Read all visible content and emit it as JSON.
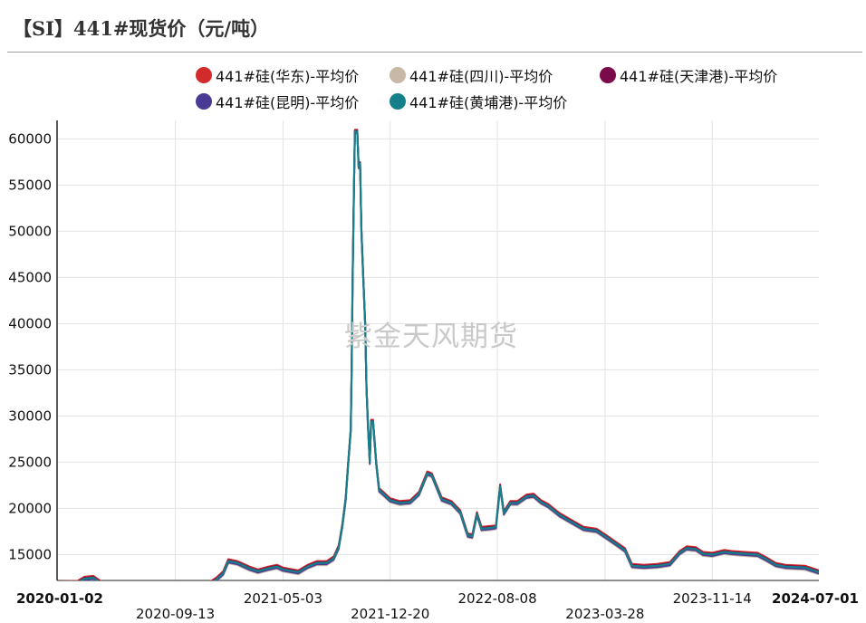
{
  "title": "【SI】441#现货价（元/吨）",
  "watermark": "紫金天风期货",
  "colors": {
    "grid": "#e3e3e3",
    "axis": "#222222"
  },
  "chart_data": {
    "type": "line",
    "x_range": [
      "2020-01-02",
      "2024-07-01"
    ],
    "y_ticks": [
      15000,
      20000,
      25000,
      30000,
      35000,
      40000,
      45000,
      50000,
      55000,
      60000
    ],
    "ylim": [
      12200,
      62000
    ],
    "x_tick_labels": [
      {
        "date": "2020-01-02",
        "label": "2020-01-02",
        "row": 0,
        "bold": true
      },
      {
        "date": "2020-09-13",
        "label": "2020-09-13",
        "row": 1,
        "bold": false
      },
      {
        "date": "2021-05-03",
        "label": "2021-05-03",
        "row": 0,
        "bold": false
      },
      {
        "date": "2021-12-20",
        "label": "2021-12-20",
        "row": 1,
        "bold": false
      },
      {
        "date": "2022-08-08",
        "label": "2022-08-08",
        "row": 0,
        "bold": false
      },
      {
        "date": "2023-03-28",
        "label": "2023-03-28",
        "row": 1,
        "bold": false
      },
      {
        "date": "2023-11-14",
        "label": "2023-11-14",
        "row": 0,
        "bold": false
      },
      {
        "date": "2024-07-01",
        "label": "2024-07-01",
        "row": 0,
        "bold": true
      }
    ],
    "legend_position": "top",
    "series": [
      {
        "name": "441#硅(华东)-平均价",
        "color": "#d32b2b",
        "offset": 200
      },
      {
        "name": "441#硅(四川)-平均价",
        "color": "#c8b8a6",
        "offset": -250
      },
      {
        "name": "441#硅(天津港)-平均价",
        "color": "#7a0a4a",
        "offset": 80
      },
      {
        "name": "441#硅(昆明)-平均价",
        "color": "#4b3a92",
        "offset": -150
      },
      {
        "name": "441#硅(黄埔港)-平均价",
        "color": "#15808a",
        "offset": 0
      }
    ],
    "base_points": [
      [
        "2020-01-02",
        11900
      ],
      [
        "2020-02-15",
        11950
      ],
      [
        "2020-03-01",
        12400
      ],
      [
        "2020-03-20",
        12500
      ],
      [
        "2020-04-15",
        11600
      ],
      [
        "2020-05-01",
        10900
      ],
      [
        "2020-05-20",
        11100
      ],
      [
        "2020-06-30",
        11100
      ],
      [
        "2020-07-15",
        10700
      ],
      [
        "2020-08-15",
        10600
      ],
      [
        "2020-09-13",
        10900
      ],
      [
        "2020-10-15",
        11200
      ],
      [
        "2020-11-15",
        11500
      ],
      [
        "2020-12-10",
        12300
      ],
      [
        "2020-12-25",
        13000
      ],
      [
        "2021-01-05",
        14300
      ],
      [
        "2021-01-25",
        14100
      ],
      [
        "2021-02-20",
        13500
      ],
      [
        "2021-03-10",
        13200
      ],
      [
        "2021-04-01",
        13500
      ],
      [
        "2021-04-20",
        13700
      ],
      [
        "2021-05-03",
        13400
      ],
      [
        "2021-06-05",
        13100
      ],
      [
        "2021-06-25",
        13700
      ],
      [
        "2021-07-15",
        14100
      ],
      [
        "2021-08-05",
        14100
      ],
      [
        "2021-08-20",
        14600
      ],
      [
        "2021-08-31",
        15800
      ],
      [
        "2021-09-08",
        18200
      ],
      [
        "2021-09-15",
        21000
      ],
      [
        "2021-09-20",
        24500
      ],
      [
        "2021-09-26",
        28500
      ],
      [
        "2021-09-28",
        35000
      ],
      [
        "2021-09-30",
        45000
      ],
      [
        "2021-10-03",
        55000
      ],
      [
        "2021-10-05",
        60800
      ],
      [
        "2021-10-10",
        60800
      ],
      [
        "2021-10-13",
        57000
      ],
      [
        "2021-10-16",
        57300
      ],
      [
        "2021-10-19",
        50000
      ],
      [
        "2021-10-23",
        45000
      ],
      [
        "2021-10-27",
        40000
      ],
      [
        "2021-10-30",
        33000
      ],
      [
        "2021-11-02",
        29000
      ],
      [
        "2021-11-06",
        25000
      ],
      [
        "2021-11-09",
        29400
      ],
      [
        "2021-11-13",
        29400
      ],
      [
        "2021-11-20",
        24800
      ],
      [
        "2021-11-26",
        22000
      ],
      [
        "2021-12-05",
        21600
      ],
      [
        "2021-12-20",
        20900
      ],
      [
        "2022-01-10",
        20600
      ],
      [
        "2022-02-01",
        20700
      ],
      [
        "2022-02-20",
        21600
      ],
      [
        "2022-03-10",
        23800
      ],
      [
        "2022-03-20",
        23600
      ],
      [
        "2022-04-10",
        21000
      ],
      [
        "2022-05-01",
        20600
      ],
      [
        "2022-05-20",
        19600
      ],
      [
        "2022-06-05",
        17100
      ],
      [
        "2022-06-15",
        17000
      ],
      [
        "2022-06-25",
        19400
      ],
      [
        "2022-07-05",
        17800
      ],
      [
        "2022-07-25",
        17900
      ],
      [
        "2022-08-05",
        18000
      ],
      [
        "2022-08-14",
        22400
      ],
      [
        "2022-08-22",
        19500
      ],
      [
        "2022-09-05",
        20600
      ],
      [
        "2022-09-20",
        20600
      ],
      [
        "2022-10-10",
        21300
      ],
      [
        "2022-10-25",
        21400
      ],
      [
        "2022-11-10",
        20700
      ],
      [
        "2022-11-25",
        20300
      ],
      [
        "2022-12-20",
        19300
      ],
      [
        "2023-01-20",
        18400
      ],
      [
        "2023-02-10",
        17800
      ],
      [
        "2023-03-10",
        17600
      ],
      [
        "2023-03-28",
        17000
      ],
      [
        "2023-04-20",
        16200
      ],
      [
        "2023-05-10",
        15500
      ],
      [
        "2023-05-25",
        13800
      ],
      [
        "2023-06-20",
        13700
      ],
      [
        "2023-07-20",
        13800
      ],
      [
        "2023-08-15",
        14000
      ],
      [
        "2023-09-05",
        15200
      ],
      [
        "2023-09-20",
        15700
      ],
      [
        "2023-10-10",
        15600
      ],
      [
        "2023-10-25",
        15100
      ],
      [
        "2023-11-14",
        15000
      ],
      [
        "2023-12-10",
        15300
      ],
      [
        "2023-12-25",
        15200
      ],
      [
        "2024-01-20",
        15100
      ],
      [
        "2024-02-20",
        15000
      ],
      [
        "2024-03-10",
        14500
      ],
      [
        "2024-03-30",
        13900
      ],
      [
        "2024-04-20",
        13700
      ],
      [
        "2024-06-01",
        13600
      ],
      [
        "2024-07-01",
        13100
      ]
    ]
  }
}
